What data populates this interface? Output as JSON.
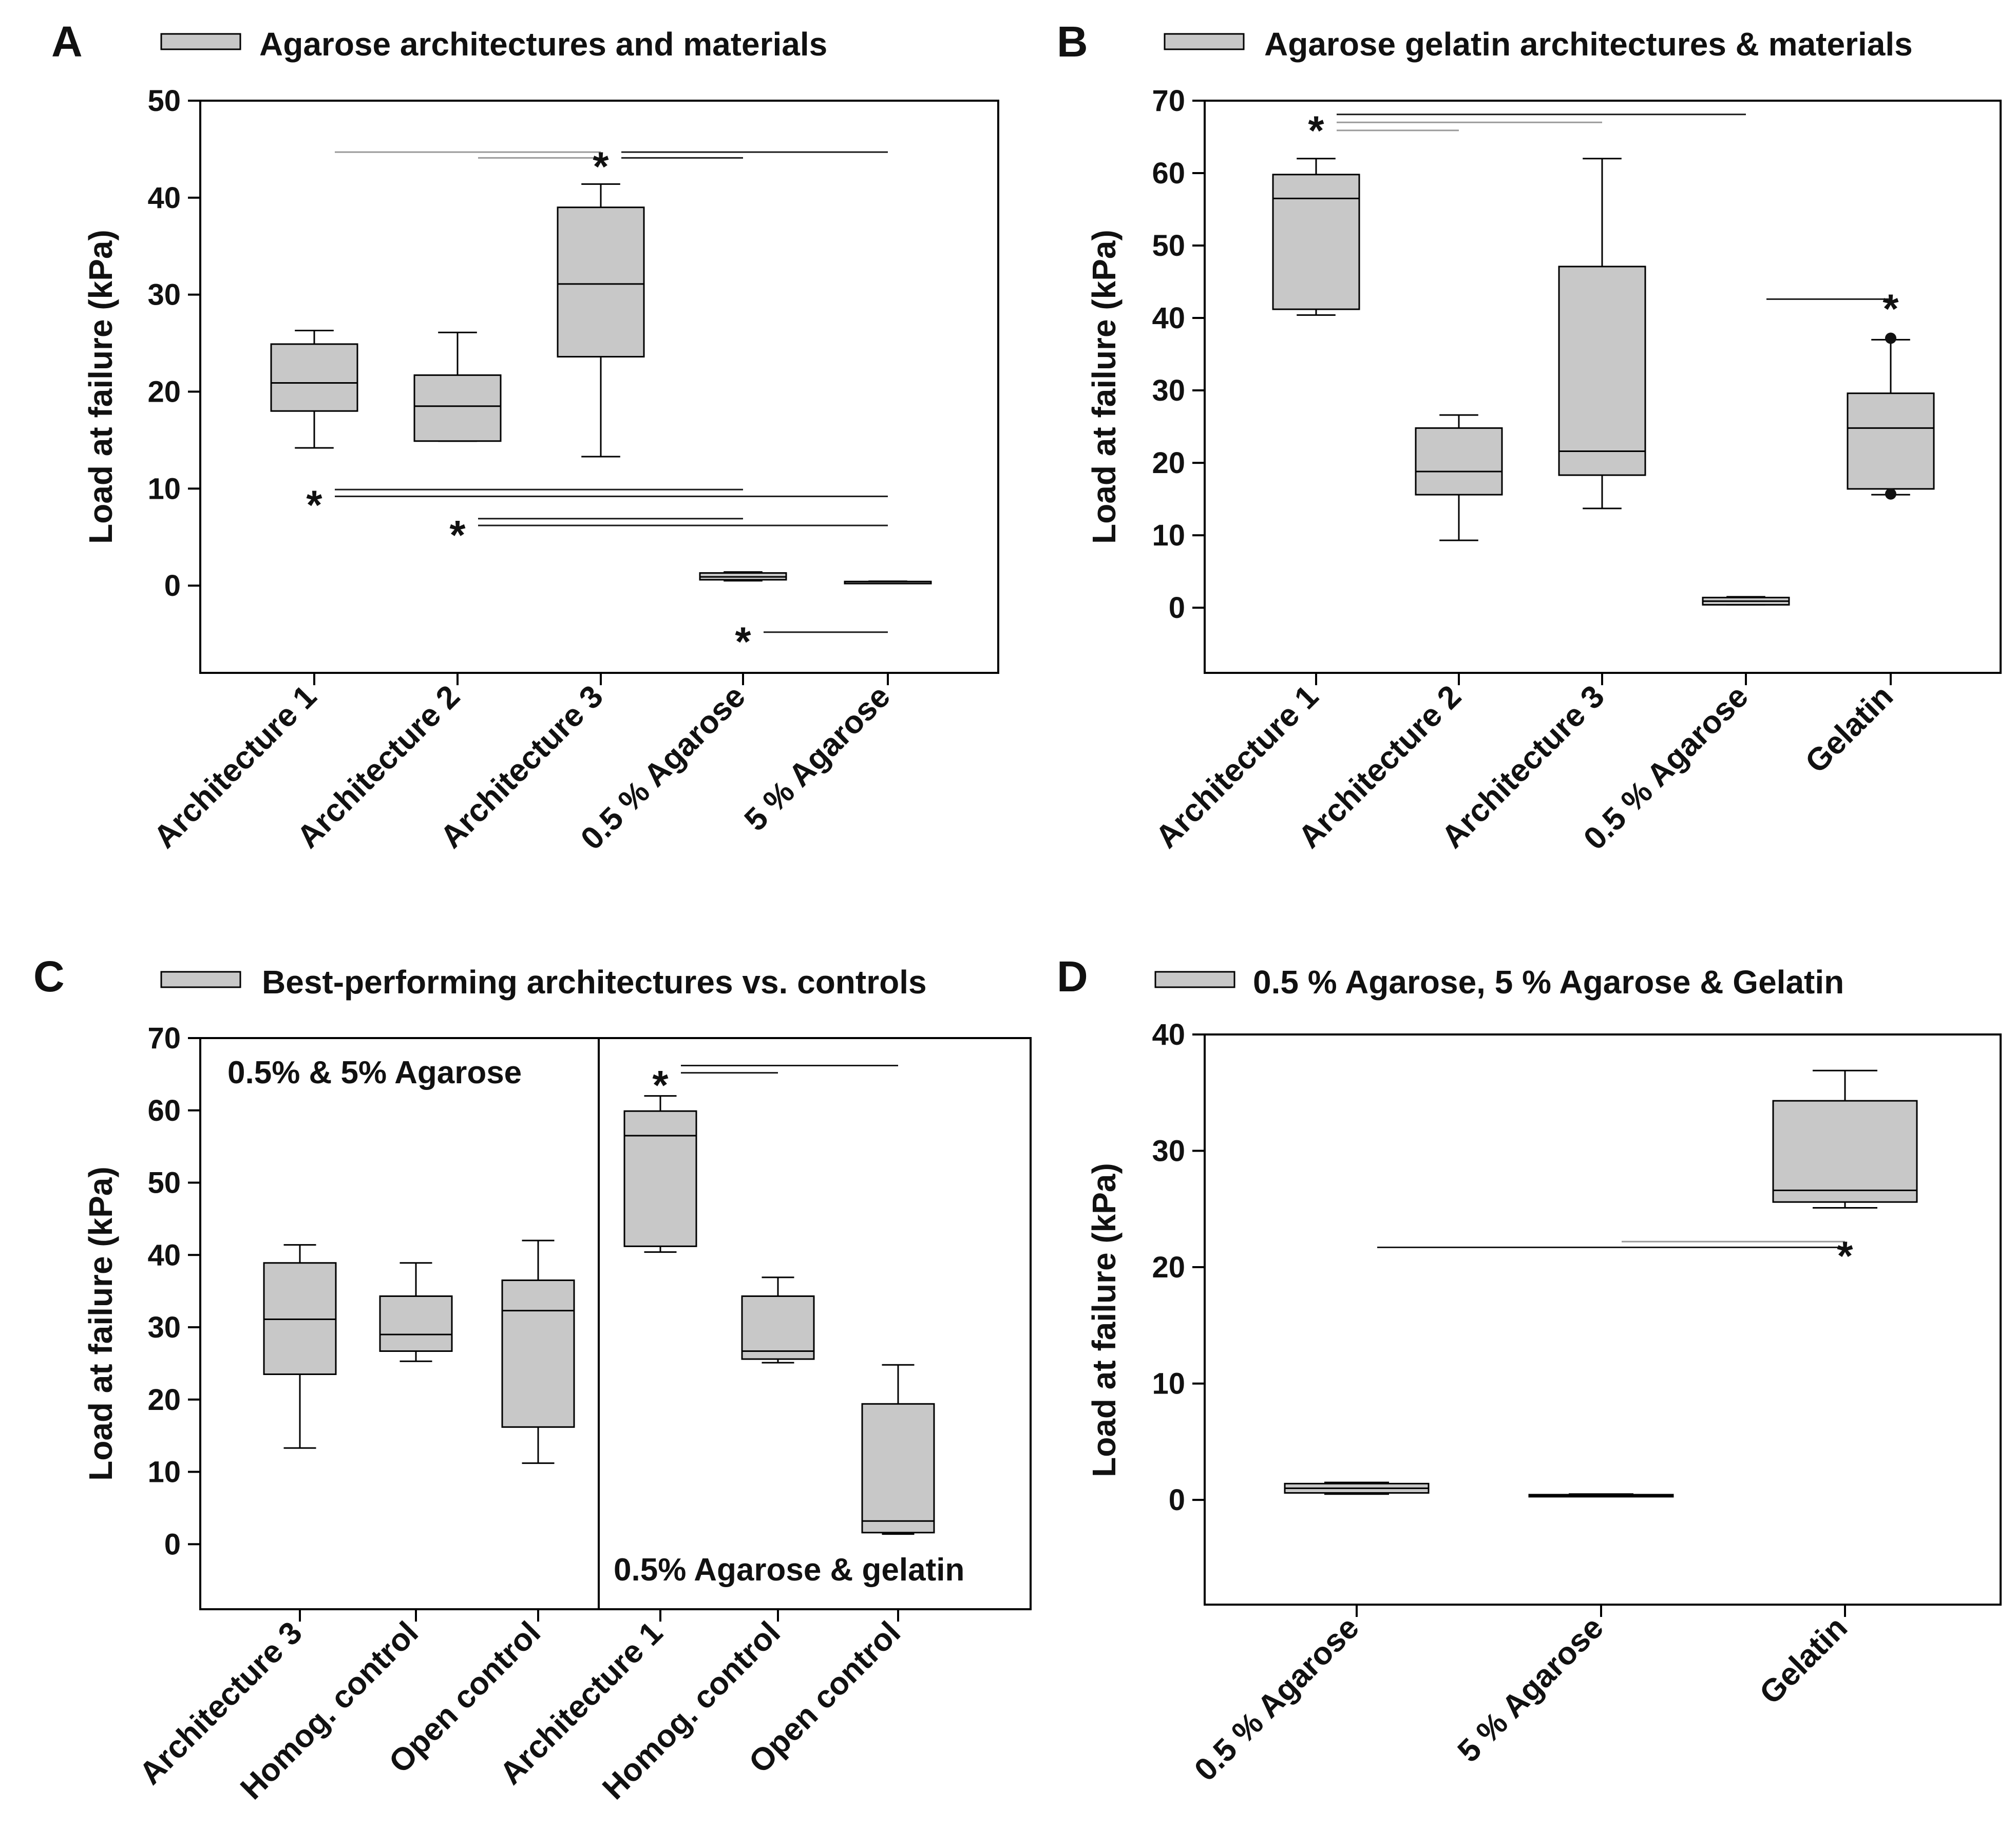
{
  "colors": {
    "box_fill": "#c8c8c8",
    "box_stroke": "#000000",
    "sig_line_dark": "#1a1a1a",
    "sig_line_light": "#9a9a9a",
    "text": "#111111"
  },
  "chart_data": [
    {
      "type": "box",
      "panel": "A",
      "legend": "Agarose architectures and materials",
      "ylabel": "Load at failure (kPa)",
      "ylim": [
        -9,
        50
      ],
      "yticks": [
        0,
        10,
        20,
        30,
        40,
        50
      ],
      "categories": [
        "Architecture 1",
        "Architecture 2",
        "Architecture 3",
        "0.5 % Agarose",
        "5 % Agarose"
      ],
      "boxes": [
        {
          "min": 14.2,
          "q1": 18,
          "median": 20.9,
          "q3": 24.9,
          "max": 26.3
        },
        {
          "min": 14.9,
          "q1": 14.9,
          "median": 18.5,
          "q3": 21.7,
          "max": 26.1
        },
        {
          "min": 13.3,
          "q1": 23.6,
          "median": 31.1,
          "q3": 39,
          "max": 41.4
        },
        {
          "min": 0.5,
          "q1": 0.6,
          "median": 0.9,
          "q3": 1.3,
          "max": 1.4
        },
        {
          "min": 0.35,
          "q1": 0.38,
          "median": 0.4,
          "q3": 0.42,
          "max": 0.45
        }
      ],
      "outliers": [],
      "significance": [
        {
          "label": "*",
          "star_at": 2,
          "star_y": 44.2,
          "lines": [
            {
              "from": 0,
              "to": 2,
              "y": 44.7,
              "tone": "light"
            },
            {
              "from": 1,
              "to": 2,
              "y": 44.1,
              "tone": "light"
            },
            {
              "from": 2,
              "to": 3,
              "y": 44.1,
              "tone": "dark"
            },
            {
              "from": 2,
              "to": 4,
              "y": 44.7,
              "tone": "dark"
            }
          ]
        },
        {
          "label": "*",
          "star_at": 0,
          "star_y": 9.3,
          "lines": [
            {
              "from": 0,
              "to": 3,
              "y": 9.9,
              "tone": "dark"
            },
            {
              "from": 0,
              "to": 4,
              "y": 9.2,
              "tone": "dark"
            }
          ]
        },
        {
          "label": "*",
          "star_at": 1,
          "star_y": 6.2,
          "lines": [
            {
              "from": 1,
              "to": 3,
              "y": 6.9,
              "tone": "dark"
            },
            {
              "from": 1,
              "to": 4,
              "y": 6.2,
              "tone": "dark"
            }
          ]
        },
        {
          "label": "*",
          "star_at": 3,
          "star_y": -4.8,
          "lines": [
            {
              "from": 3,
              "to": 4,
              "y": -4.8,
              "tone": "dark"
            }
          ]
        }
      ]
    },
    {
      "type": "box",
      "panel": "B",
      "legend": "Agarose gelatin architectures & materials",
      "ylabel": "Load at failure (kPa)",
      "ylim": [
        -9,
        70
      ],
      "yticks": [
        0,
        10,
        20,
        30,
        40,
        50,
        60,
        70
      ],
      "categories": [
        "Architecture 1",
        "Architecture 2",
        "Architecture 3",
        "0.5 % Agarose",
        "Gelatin"
      ],
      "boxes": [
        {
          "min": 40.4,
          "q1": 41.2,
          "median": 56.5,
          "q3": 59.8,
          "max": 62
        },
        {
          "min": 9.3,
          "q1": 15.6,
          "median": 18.8,
          "q3": 24.8,
          "max": 26.6
        },
        {
          "min": 13.7,
          "q1": 18.3,
          "median": 21.6,
          "q3": 47.1,
          "max": 62
        },
        {
          "min": 0.4,
          "q1": 0.4,
          "median": 0.9,
          "q3": 1.4,
          "max": 1.5
        },
        {
          "min": 15.6,
          "q1": 16.4,
          "median": 24.8,
          "q3": 29.6,
          "max": 37
        }
      ],
      "outliers": [
        {
          "category": 4,
          "value": 37.2
        },
        {
          "category": 4,
          "value": 15.7
        }
      ],
      "significance": [
        {
          "label": "*",
          "star_at": 0,
          "star_y": 67.2,
          "lines": [
            {
              "from": 0,
              "to": 3,
              "y": 68.1,
              "tone": "dark"
            },
            {
              "from": 0,
              "to": 2,
              "y": 67,
              "tone": "light"
            },
            {
              "from": 0,
              "to": 1,
              "y": 65.9,
              "tone": "light"
            }
          ]
        },
        {
          "label": "*",
          "star_at": 4,
          "star_y": 42.6,
          "lines": [
            {
              "from": 3,
              "to": 4,
              "y": 42.6,
              "tone": "dark"
            }
          ]
        }
      ]
    },
    {
      "type": "box",
      "panel": "C",
      "legend": "Best-performing architectures vs. controls",
      "ylabel": "Load at failure (kPa)",
      "ylim": [
        -9,
        70
      ],
      "yticks": [
        0,
        10,
        20,
        30,
        40,
        50,
        60,
        70
      ],
      "categories": [
        "Architecture 3",
        "Homog. control",
        "Open control",
        "Architecture 1",
        "Homog. control",
        "Open control"
      ],
      "group_labels": [
        "0.5% & 5% Agarose",
        "0.5% Agarose & gelatin"
      ],
      "boxes": [
        {
          "min": 13.3,
          "q1": 23.5,
          "median": 31.1,
          "q3": 38.9,
          "max": 41.4
        },
        {
          "min": 25.3,
          "q1": 26.7,
          "median": 29,
          "q3": 34.3,
          "max": 38.9
        },
        {
          "min": 11.2,
          "q1": 16.2,
          "median": 32.3,
          "q3": 36.5,
          "max": 42
        },
        {
          "min": 40.4,
          "q1": 41.2,
          "median": 56.5,
          "q3": 59.9,
          "max": 62
        },
        {
          "min": 25.1,
          "q1": 25.6,
          "median": 26.7,
          "q3": 34.3,
          "max": 36.9
        },
        {
          "min": 1.4,
          "q1": 1.6,
          "median": 3.2,
          "q3": 19.4,
          "max": 24.8
        }
      ],
      "outliers": [],
      "significance": [
        {
          "label": "*",
          "star_at": 3,
          "star_y": 64.8,
          "lines": [
            {
              "from": 3,
              "to": 4,
              "y": 65.2,
              "tone": "dark"
            },
            {
              "from": 3,
              "to": 5,
              "y": 66.2,
              "tone": "dark"
            }
          ]
        }
      ]
    },
    {
      "type": "box",
      "panel": "D",
      "legend": "0.5 % Agarose, 5 % Agarose & Gelatin",
      "ylabel": "Load at failure (kPa)",
      "ylim": [
        -9,
        40
      ],
      "yticks": [
        0,
        10,
        20,
        30,
        40
      ],
      "categories": [
        "0.5 % Agarose",
        "5 % Agarose",
        "Gelatin"
      ],
      "boxes": [
        {
          "min": 0.5,
          "q1": 0.6,
          "median": 1,
          "q3": 1.4,
          "max": 1.5
        },
        {
          "min": 0.3,
          "q1": 0.35,
          "median": 0.4,
          "q3": 0.45,
          "max": 0.5
        },
        {
          "min": 25.1,
          "q1": 25.6,
          "median": 26.6,
          "q3": 34.3,
          "max": 36.9
        }
      ],
      "outliers": [],
      "significance": [
        {
          "label": "*",
          "star_at": 2,
          "star_y": 21.8,
          "lines": [
            {
              "from": 0,
              "to": 2,
              "y": 21.7,
              "tone": "dark"
            },
            {
              "from": 1,
              "to": 2,
              "y": 22.2,
              "tone": "light"
            }
          ]
        }
      ]
    }
  ]
}
